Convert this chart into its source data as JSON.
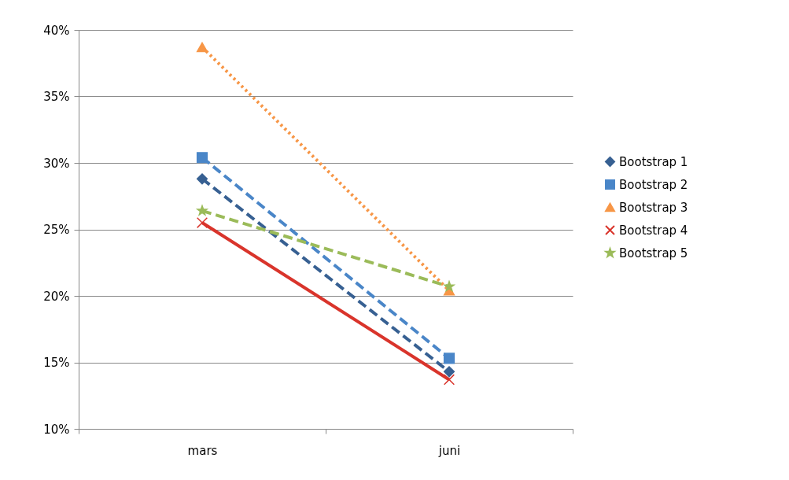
{
  "chart_data": {
    "type": "line",
    "categories": [
      "mars",
      "juni"
    ],
    "series": [
      {
        "name": "Bootstrap 1",
        "color": "#376092",
        "marker": "diamond",
        "line_style": "dashed",
        "values": [
          28.8,
          14.3
        ]
      },
      {
        "name": "Bootstrap 2",
        "color": "#4a86c8",
        "marker": "square",
        "line_style": "dashed",
        "values": [
          30.4,
          15.3
        ]
      },
      {
        "name": "Bootstrap 3",
        "color": "#f79646",
        "marker": "triangle",
        "line_style": "dotted",
        "values": [
          38.7,
          20.4
        ]
      },
      {
        "name": "Bootstrap 4",
        "color": "#d9342b",
        "marker": "cross",
        "line_style": "solid",
        "values": [
          25.5,
          13.7
        ]
      },
      {
        "name": "Bootstrap 5",
        "color": "#9bbb59",
        "marker": "star",
        "line_style": "dashed",
        "values": [
          26.4,
          20.7
        ]
      }
    ],
    "ylim": [
      10,
      40
    ],
    "yticks": [
      {
        "value": 10,
        "label": "10%"
      },
      {
        "value": 15,
        "label": "15%"
      },
      {
        "value": 20,
        "label": "20%"
      },
      {
        "value": 25,
        "label": "25%"
      },
      {
        "value": 30,
        "label": "30%"
      },
      {
        "value": 35,
        "label": "35%"
      },
      {
        "value": 40,
        "label": "40%"
      }
    ],
    "grid": "y",
    "legend": "right"
  }
}
